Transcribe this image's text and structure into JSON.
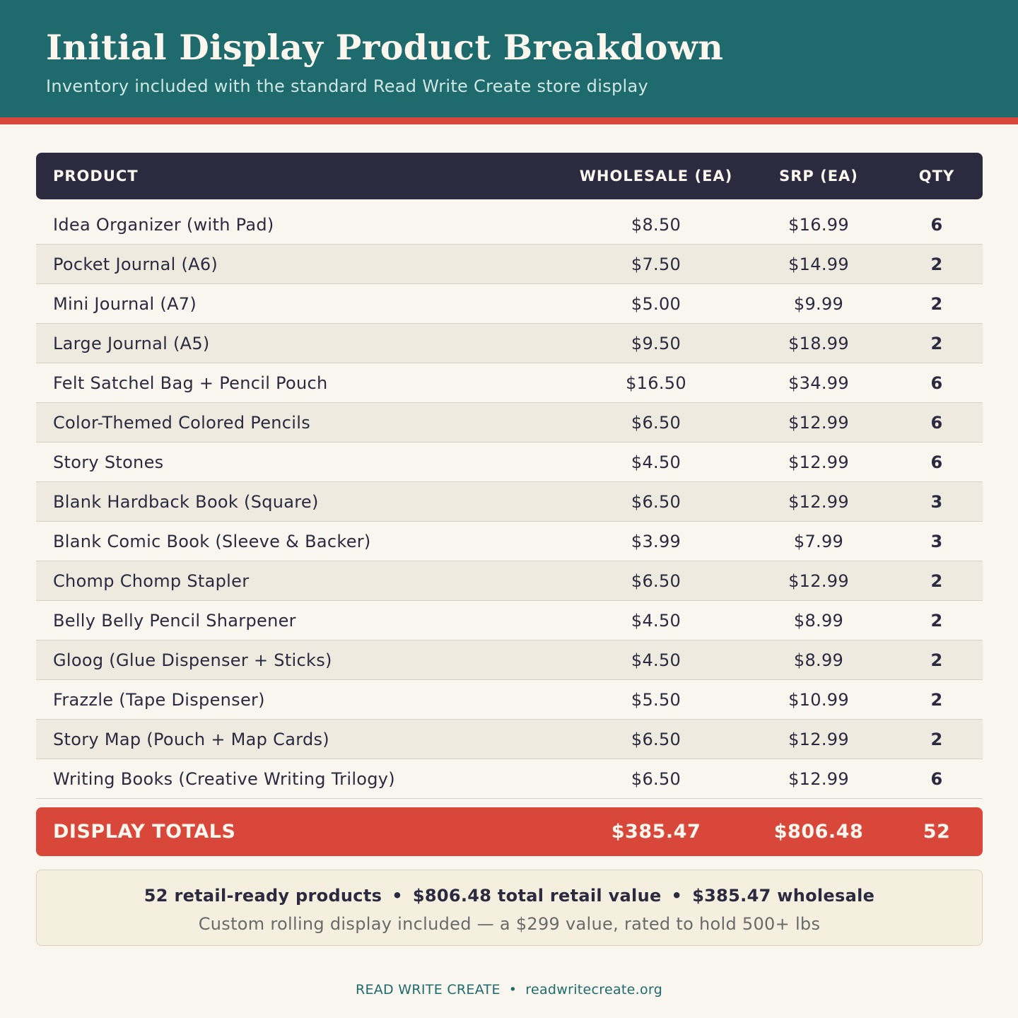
{
  "header": {
    "title": "Initial Display Product Breakdown",
    "subtitle": "Inventory included with the standard Read Write Create store display"
  },
  "colors": {
    "header_bg": "#1e6a6c",
    "accent": "#d8473a",
    "table_head_bg": "#2b2a3f",
    "page_bg": "#f9f6ef"
  },
  "table": {
    "columns": [
      "PRODUCT",
      "WHOLESALE (EA)",
      "SRP (EA)",
      "QTY"
    ],
    "rows": [
      {
        "product": "Idea Organizer (with Pad)",
        "wholesale": "$8.50",
        "srp": "$16.99",
        "qty": "6"
      },
      {
        "product": "Pocket Journal (A6)",
        "wholesale": "$7.50",
        "srp": "$14.99",
        "qty": "2"
      },
      {
        "product": "Mini Journal (A7)",
        "wholesale": "$5.00",
        "srp": "$9.99",
        "qty": "2"
      },
      {
        "product": "Large Journal (A5)",
        "wholesale": "$9.50",
        "srp": "$18.99",
        "qty": "2"
      },
      {
        "product": "Felt Satchel Bag + Pencil Pouch",
        "wholesale": "$16.50",
        "srp": "$34.99",
        "qty": "6"
      },
      {
        "product": "Color-Themed Colored Pencils",
        "wholesale": "$6.50",
        "srp": "$12.99",
        "qty": "6"
      },
      {
        "product": "Story Stones",
        "wholesale": "$4.50",
        "srp": "$12.99",
        "qty": "6"
      },
      {
        "product": "Blank Hardback Book (Square)",
        "wholesale": "$6.50",
        "srp": "$12.99",
        "qty": "3"
      },
      {
        "product": "Blank Comic Book (Sleeve & Backer)",
        "wholesale": "$3.99",
        "srp": "$7.99",
        "qty": "3"
      },
      {
        "product": "Chomp Chomp Stapler",
        "wholesale": "$6.50",
        "srp": "$12.99",
        "qty": "2"
      },
      {
        "product": "Belly Belly Pencil Sharpener",
        "wholesale": "$4.50",
        "srp": "$8.99",
        "qty": "2"
      },
      {
        "product": "Gloog (Glue Dispenser + Sticks)",
        "wholesale": "$4.50",
        "srp": "$8.99",
        "qty": "2"
      },
      {
        "product": "Frazzle (Tape Dispenser)",
        "wholesale": "$5.50",
        "srp": "$10.99",
        "qty": "2"
      },
      {
        "product": "Story Map (Pouch + Map Cards)",
        "wholesale": "$6.50",
        "srp": "$12.99",
        "qty": "2"
      },
      {
        "product": "Writing Books (Creative Writing Trilogy)",
        "wholesale": "$6.50",
        "srp": "$12.99",
        "qty": "6"
      }
    ],
    "totals": {
      "label": "DISPLAY TOTALS",
      "wholesale": "$385.47",
      "srp": "$806.48",
      "qty": "52"
    }
  },
  "summary": {
    "items": [
      "52 retail-ready products",
      "$806.48 total retail value",
      "$385.47 wholesale"
    ],
    "separator": "•",
    "note": "Custom rolling display included — a $299 value, rated to hold 500+ lbs"
  },
  "footer": {
    "brand": "READ WRITE CREATE",
    "separator": "•",
    "url": "readwritecreate.org"
  }
}
